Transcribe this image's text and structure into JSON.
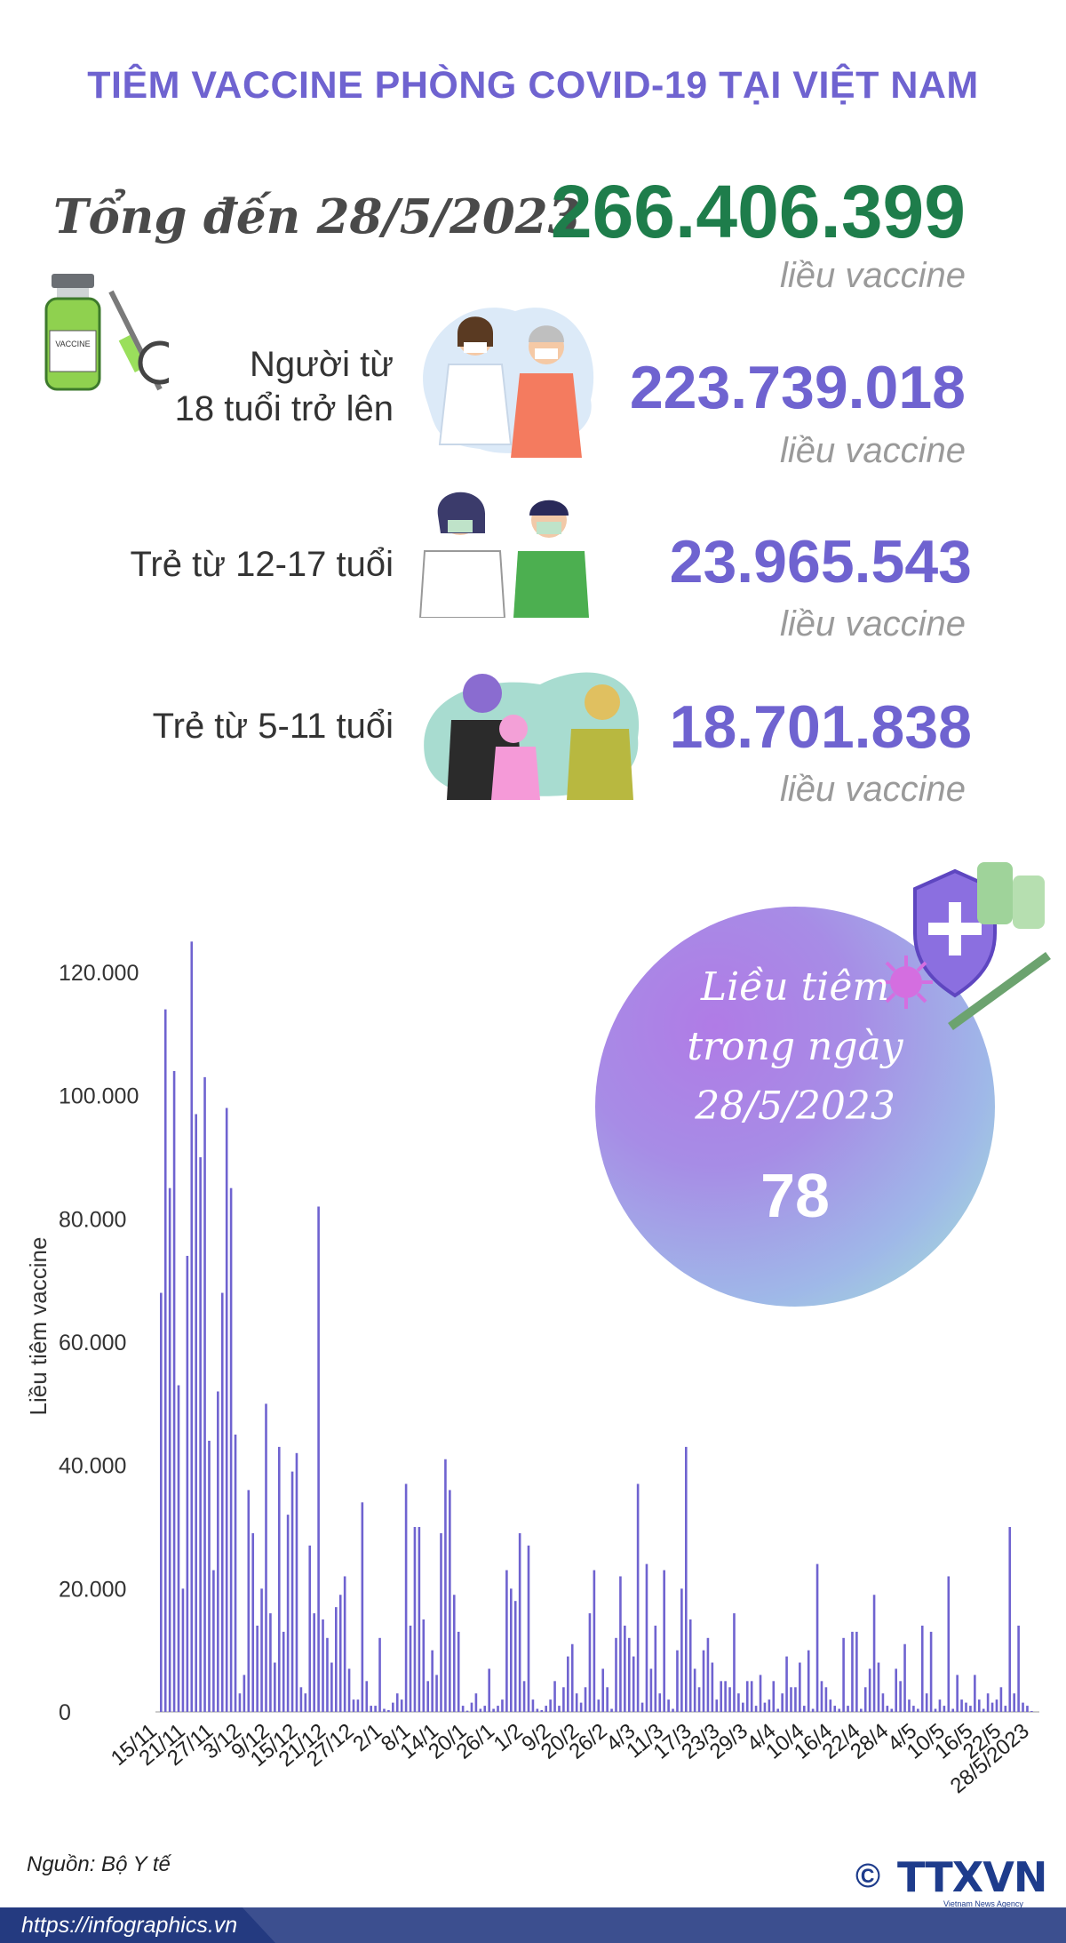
{
  "title": "TIÊM VACCINE PHÒNG COVID-19 TẠI VIỆT NAM",
  "total": {
    "label": "Tổng đến 28/5/2023",
    "value": "266.406.399",
    "unit": "liều vaccine"
  },
  "groups": [
    {
      "label_line1": "Người từ",
      "label_line2": "18 tuổi trở lên",
      "value": "223.739.018",
      "unit": "liều vaccine"
    },
    {
      "label_line1": "Trẻ từ 12-17 tuổi",
      "label_line2": "",
      "value": "23.965.543",
      "unit": "liều vaccine"
    },
    {
      "label_line1": "Trẻ từ 5-11 tuổi",
      "label_line2": "",
      "value": "18.701.838",
      "unit": "liều vaccine"
    }
  ],
  "daily": {
    "line1": "Liều tiêm",
    "line2": "trong ngày",
    "line3": "28/5/2023",
    "value": "78"
  },
  "vial_label": "VACCINE",
  "colors": {
    "title": "#6f63d0",
    "total": "#1e7d4b",
    "bar": "#6f63d0",
    "footer": "#243a80"
  },
  "icons": [
    "vaccine-vial-icon",
    "syringe-icon",
    "shield-cross-icon",
    "virus-icon"
  ],
  "chart_data": {
    "type": "bar",
    "ylabel": "Liều tiêm vaccine",
    "xlabel": "",
    "title": "",
    "ylim": [
      0,
      125000
    ],
    "yticks": [
      0,
      20000,
      40000,
      60000,
      80000,
      100000,
      120000
    ],
    "ytick_labels": [
      "0",
      "20.000",
      "40.000",
      "60.000",
      "80.000",
      "100.000",
      "120.000"
    ],
    "xtick_labels": [
      "15/11",
      "21/11",
      "27/11",
      "3/12",
      "9/12",
      "15/12",
      "21/12",
      "27/12",
      "2/1",
      "8/1",
      "14/1",
      "20/1",
      "26/1",
      "1/2",
      "9/2",
      "20/2",
      "26/2",
      "4/3",
      "11/3",
      "17/3",
      "23/3",
      "29/3",
      "4/4",
      "10/4",
      "16/4",
      "22/4",
      "28/4",
      "4/5",
      "10/5",
      "16/5",
      "22/5",
      "28/5/2023"
    ],
    "values": [
      68000,
      114000,
      85000,
      104000,
      53000,
      20000,
      74000,
      125000,
      97000,
      90000,
      103000,
      44000,
      23000,
      52000,
      68000,
      98000,
      85000,
      45000,
      3000,
      6000,
      36000,
      29000,
      14000,
      20000,
      50000,
      16000,
      8000,
      43000,
      13000,
      32000,
      39000,
      42000,
      4000,
      3000,
      27000,
      16000,
      82000,
      15000,
      12000,
      8000,
      17000,
      19000,
      22000,
      7000,
      2000,
      2000,
      34000,
      5000,
      1000,
      1000,
      12000,
      500,
      300,
      1500,
      3000,
      2000,
      37000,
      14000,
      30000,
      30000,
      15000,
      5000,
      10000,
      6000,
      29000,
      41000,
      36000,
      19000,
      13000,
      1000,
      200,
      1500,
      3000,
      500,
      1000,
      7000,
      500,
      1000,
      2000,
      23000,
      20000,
      18000,
      29000,
      5000,
      27000,
      2000,
      500,
      300,
      1000,
      2000,
      5000,
      1000,
      4000,
      9000,
      11000,
      3000,
      1500,
      4000,
      16000,
      23000,
      2000,
      7000,
      4000,
      500,
      12000,
      22000,
      14000,
      12000,
      9000,
      37000,
      1500,
      24000,
      7000,
      14000,
      3000,
      23000,
      2000,
      500,
      10000,
      20000,
      43000,
      15000,
      7000,
      4000,
      10000,
      12000,
      8000,
      2000,
      5000,
      5000,
      4000,
      16000,
      3000,
      1500,
      5000,
      5000,
      1000,
      6000,
      1500,
      2000,
      5000,
      500,
      3000,
      9000,
      4000,
      4000,
      8000,
      1000,
      10000,
      500,
      24000,
      5000,
      4000,
      2000,
      1000,
      500,
      12000,
      1000,
      13000,
      13000,
      500,
      4000,
      7000,
      19000,
      8000,
      3000,
      1000,
      500,
      7000,
      5000,
      11000,
      2000,
      1000,
      500,
      14000,
      3000,
      13000,
      500,
      2000,
      1000,
      22000,
      500,
      6000,
      2000,
      1500,
      1000,
      6000,
      2000,
      500,
      3000,
      1500,
      2000,
      4000,
      1000,
      30000,
      3000,
      14000,
      1500,
      1000,
      78
    ]
  }
}
